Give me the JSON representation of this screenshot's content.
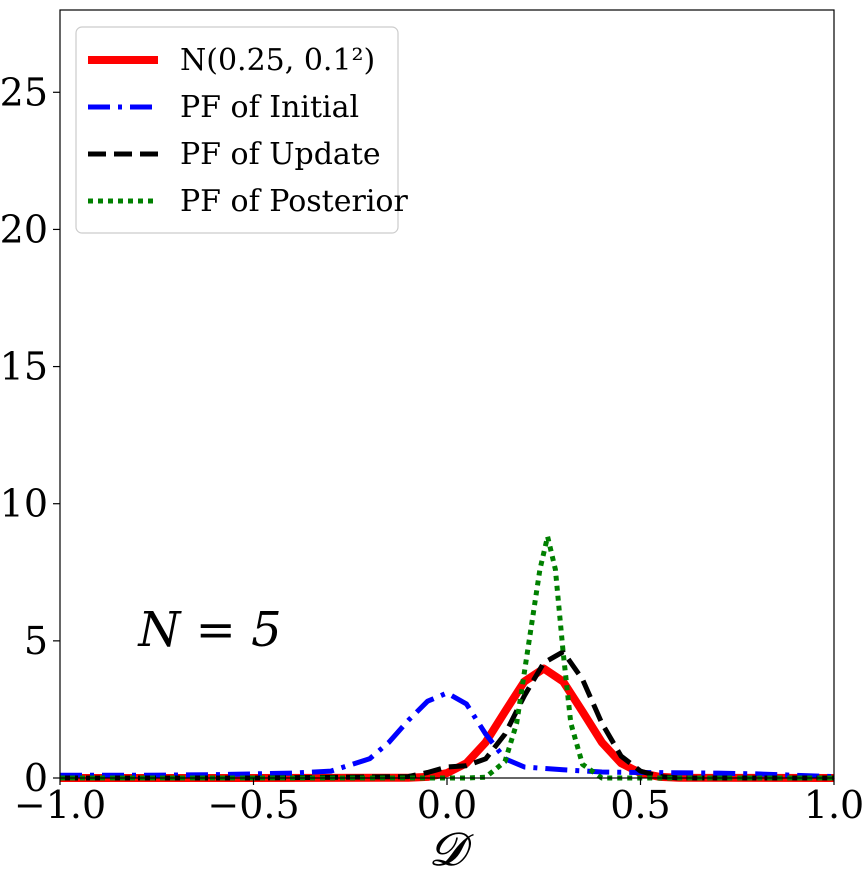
{
  "chart_data": {
    "type": "line",
    "xlabel": "𝓓",
    "xlim": [
      -1.0,
      1.0
    ],
    "ylim": [
      0,
      28
    ],
    "x_ticks": [
      -1.0,
      -0.5,
      0.0,
      0.5,
      1.0
    ],
    "x_tick_labels": [
      "−1.0",
      "−0.5",
      "0.0",
      "0.5",
      "1.0"
    ],
    "y_ticks": [
      0,
      5,
      10,
      15,
      20,
      25
    ],
    "y_tick_labels": [
      "0",
      "5",
      "10",
      "15",
      "20",
      "25"
    ],
    "grid": false,
    "legend_position": "top-left",
    "annotation": "N = 5",
    "series": [
      {
        "name": "N(0.25, 0.1²)",
        "color": "#ff0000",
        "style": "solid",
        "x": [
          -1.0,
          -0.5,
          -0.1,
          -0.05,
          0.0,
          0.05,
          0.1,
          0.15,
          0.2,
          0.25,
          0.3,
          0.35,
          0.4,
          0.45,
          0.5,
          0.55,
          0.6,
          1.0
        ],
        "y": [
          0,
          0,
          0.01,
          0.04,
          0.18,
          0.54,
          1.3,
          2.42,
          3.52,
          3.99,
          3.52,
          2.42,
          1.3,
          0.54,
          0.18,
          0.04,
          0.01,
          0
        ]
      },
      {
        "name": "PF of Initial",
        "color": "#0000ff",
        "style": "dashdot",
        "x": [
          -1.0,
          -0.8,
          -0.6,
          -0.4,
          -0.3,
          -0.2,
          -0.15,
          -0.1,
          -0.05,
          0.0,
          0.05,
          0.1,
          0.15,
          0.2,
          0.3,
          0.4,
          0.5,
          0.7,
          0.8,
          0.9,
          1.0
        ],
        "y": [
          0.1,
          0.1,
          0.12,
          0.18,
          0.25,
          0.7,
          1.3,
          2.1,
          2.8,
          3.1,
          2.7,
          1.6,
          0.7,
          0.4,
          0.3,
          0.22,
          0.2,
          0.18,
          0.15,
          0.1,
          0.05
        ]
      },
      {
        "name": "PF of Update",
        "color": "#000000",
        "style": "dashed",
        "x": [
          -1.0,
          -0.5,
          -0.1,
          -0.05,
          0.0,
          0.05,
          0.1,
          0.15,
          0.2,
          0.25,
          0.3,
          0.35,
          0.4,
          0.45,
          0.5,
          0.55,
          0.6,
          1.0
        ],
        "y": [
          0.0,
          0.0,
          0.05,
          0.2,
          0.4,
          0.45,
          0.7,
          1.6,
          3.0,
          4.2,
          4.6,
          3.6,
          2.0,
          0.8,
          0.25,
          0.05,
          0.0,
          0.0
        ]
      },
      {
        "name": "PF of Posterior",
        "color": "#008000",
        "style": "dotted",
        "x": [
          -1.0,
          0.05,
          0.1,
          0.15,
          0.18,
          0.21,
          0.24,
          0.26,
          0.28,
          0.3,
          0.32,
          0.35,
          0.4,
          1.0
        ],
        "y": [
          0.0,
          0.0,
          0.03,
          0.6,
          2.0,
          4.8,
          7.6,
          8.8,
          7.6,
          4.6,
          2.0,
          0.5,
          0.0,
          0.0
        ]
      }
    ]
  }
}
